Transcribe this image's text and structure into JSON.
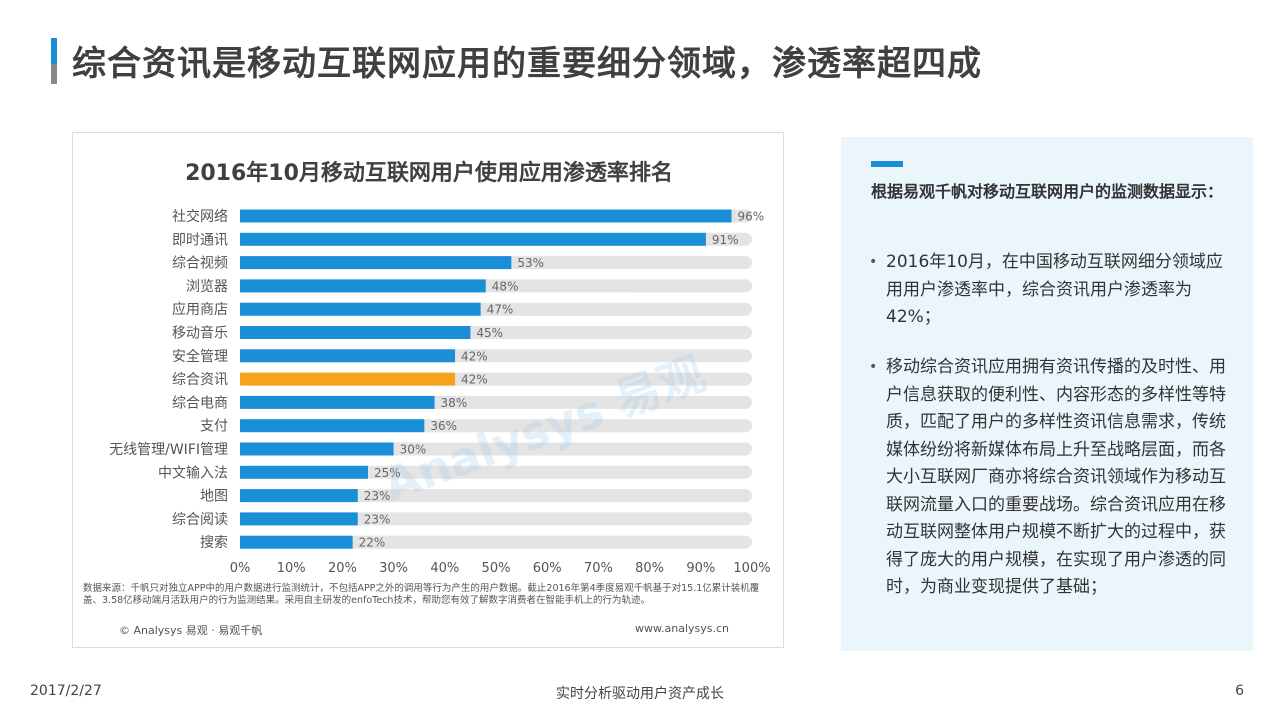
{
  "page": {
    "title": "综合资讯是移动互联网应用的重要细分领域，渗透率超四成"
  },
  "chart_data": {
    "type": "bar",
    "orientation": "horizontal",
    "title": "2016年10月移动互联网用户使用应用渗透率排名",
    "categories": [
      "社交网络",
      "即时通讯",
      "综合视频",
      "浏览器",
      "应用商店",
      "移动音乐",
      "安全管理",
      "综合资讯",
      "综合电商",
      "支付",
      "无线管理/WIFI管理",
      "中文输入法",
      "地图",
      "综合阅读",
      "搜索"
    ],
    "values": [
      96,
      91,
      53,
      48,
      47,
      45,
      42,
      42,
      38,
      36,
      30,
      25,
      23,
      23,
      22
    ],
    "value_labels": [
      "96%",
      "91%",
      "53%",
      "48%",
      "47%",
      "45%",
      "42%",
      "42%",
      "38%",
      "36%",
      "30%",
      "25%",
      "23%",
      "23%",
      "22%"
    ],
    "highlight_category": "综合资讯",
    "xlim": [
      0,
      100
    ],
    "x_ticks": [
      "0%",
      "10%",
      "20%",
      "30%",
      "40%",
      "50%",
      "60%",
      "70%",
      "80%",
      "90%",
      "100%"
    ],
    "colors": {
      "bar": "#1a8fd8",
      "highlight": "#f5a31a",
      "track": "#e4e4e4"
    },
    "grid": false,
    "legend": "none"
  },
  "chart_meta": {
    "watermark": "Analysys 易观",
    "source_note": "数据来源：千帆只对独立APP中的用户数据进行监测统计，不包括APP之外的调用等行为产生的用户数据。截止2016年第4季度易观千帆基于对15.1亿累计装机覆盖、3.58亿移动端月活跃用户的行为监测结果。采用自主研发的enfoTech技术，帮助您有效了解数字消费者在智能手机上的行为轨迹。",
    "copyright": "© Analysys 易观 · 易观千帆",
    "website": "www.analysys.cn"
  },
  "side_panel": {
    "heading": "根据易观千帆对移动互联网用户的监测数据显示：",
    "bullet_symbol": "•",
    "bullets": [
      "2016年10月，在中国移动互联网细分领域应用用户渗透率中，综合资讯用户渗透率为42%；",
      "移动综合资讯应用拥有资讯传播的及时性、用户信息获取的便利性、内容形态的多样性等特质，匹配了用户的多样性资讯信息需求，传统媒体纷纷将新媒体布局上升至战略层面，而各大小互联网厂商亦将综合资讯领域作为移动互联网流量入口的重要战场。综合资讯应用在移动互联网整体用户规模不断扩大的过程中，获得了庞大的用户规模，在实现了用户渗透的同时，为商业变现提供了基础；"
    ]
  },
  "footer": {
    "date": "2017/2/27",
    "slogan": "实时分析驱动用户资产成长",
    "page_number": "6"
  }
}
